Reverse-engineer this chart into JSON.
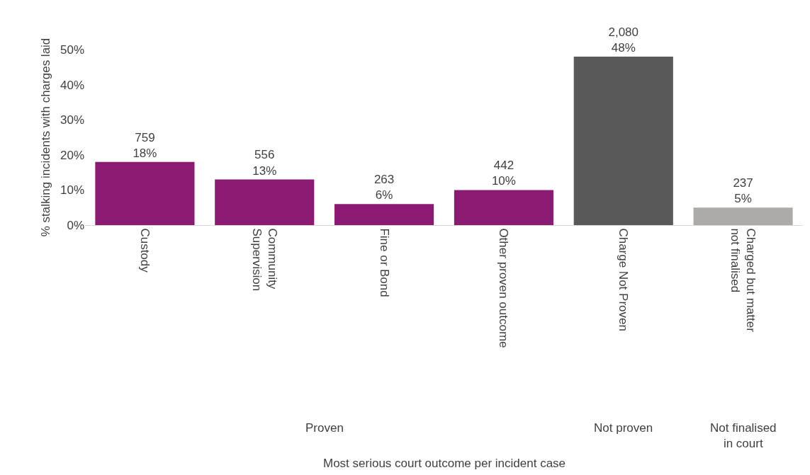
{
  "chart_data": {
    "type": "bar",
    "categories": [
      "Custody",
      "Community Supervision",
      "Fine or Bond",
      "Other proven outcome",
      "Charge Not Proven",
      "Charged but matter not finalised"
    ],
    "values": [
      18,
      13,
      6,
      10,
      48,
      5
    ],
    "colors": [
      "#8b1a73",
      "#8b1a73",
      "#8b1a73",
      "#8b1a73",
      "#595959",
      "#aeaaaa"
    ],
    "value_labels": [
      "759\n18%",
      "556\n13%",
      "263\n6%",
      "442\n10%",
      "2,080\n48%",
      "237\n5%"
    ],
    "ylim": [
      0,
      50
    ],
    "yticks": [
      {
        "value": 0,
        "label": "0%"
      },
      {
        "value": 10,
        "label": "10%"
      },
      {
        "value": 20,
        "label": "20%"
      },
      {
        "value": 30,
        "label": "30%"
      },
      {
        "value": 40,
        "label": "40%"
      },
      {
        "value": 50,
        "label": "50%"
      }
    ],
    "ylabel": "% stalking incidents with charges laid",
    "annotations": [
      "Proven",
      "Not proven",
      "Not finalised in court",
      "Most serious court outcome per incident case"
    ],
    "grid": false
  }
}
